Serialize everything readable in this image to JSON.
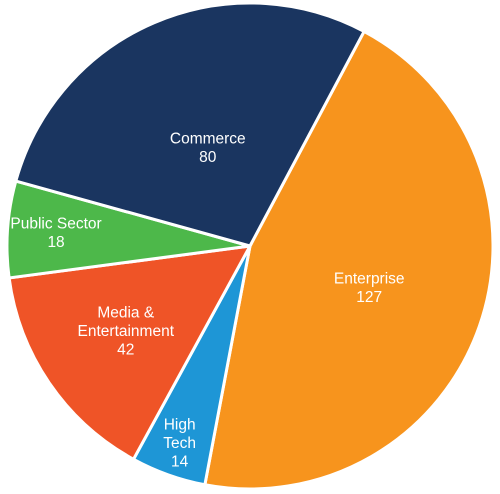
{
  "chart_data": {
    "type": "pie",
    "slices": [
      {
        "name": "Enterprise",
        "value": 127,
        "color": "#F7941D",
        "label_lines": [
          "Enterprise",
          "127"
        ]
      },
      {
        "name": "High Tech",
        "value": 14,
        "color": "#1E96D6",
        "label_lines": [
          "High",
          "Tech",
          "14"
        ]
      },
      {
        "name": "Media & Entertainment",
        "value": 42,
        "color": "#EF5427",
        "label_lines": [
          "Media &",
          "Entertainment",
          "42"
        ]
      },
      {
        "name": "Public Sector",
        "value": 18,
        "color": "#4DB84A",
        "label_lines": [
          "Public Sector",
          "18"
        ]
      },
      {
        "name": "Commerce",
        "value": 80,
        "color": "#1A3560",
        "label_lines": [
          "Commerce",
          "80"
        ]
      }
    ],
    "start_slice": "Enterprise",
    "direction": "clockwise",
    "legend": "none"
  }
}
